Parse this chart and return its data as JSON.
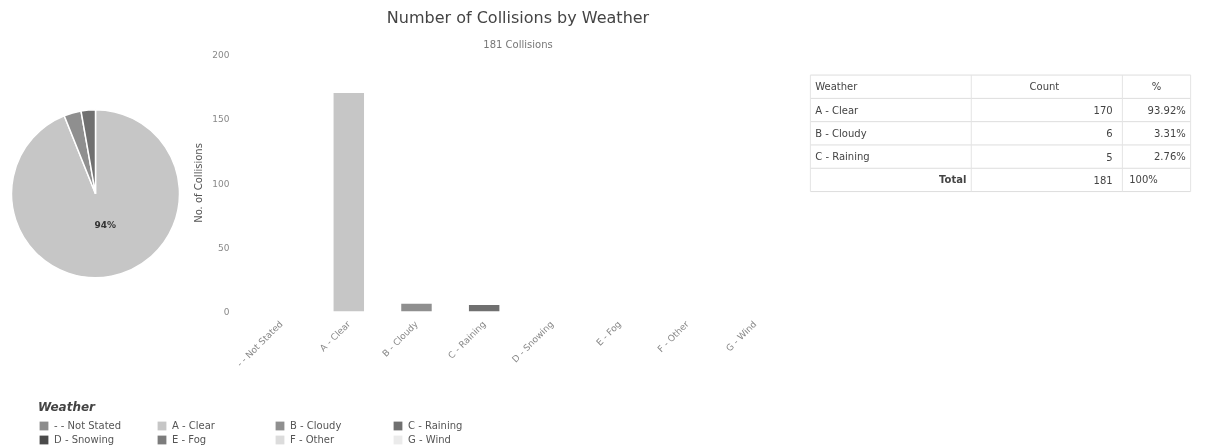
{
  "chart_data": [
    {
      "type": "pie",
      "categories": [
        "- - Not Stated",
        "A - Clear",
        "B - Cloudy",
        "C - Raining",
        "D - Snowing",
        "E - Fog",
        "F - Other",
        "G - Wind"
      ],
      "values": [
        0,
        93.92,
        3.31,
        2.76,
        0,
        0,
        0,
        0
      ],
      "colors": [
        "#8c8c8c",
        "#c6c6c6",
        "#8f8f8f",
        "#707070",
        "#4a4a4a",
        "#7c7c7c",
        "#dcdcdc",
        "#ebebeb"
      ],
      "value_labels": [
        null,
        "94%",
        null,
        null,
        null,
        null,
        null,
        null
      ],
      "legend": "bottom",
      "legend_title": "Weather"
    },
    {
      "type": "bar",
      "title": "Number of Collisions by Weather",
      "subtitle": "181 Collisions",
      "ylabel": "No. of Collisions",
      "categories": [
        "- - Not Stated",
        "A - Clear",
        "B - Cloudy",
        "C - Raining",
        "D - Snowing",
        "E - Fog",
        "F - Other",
        "G - Wind"
      ],
      "values": [
        0,
        170,
        6,
        5,
        0,
        0,
        0,
        0
      ],
      "colors": [
        "#8c8c8c",
        "#c6c6c6",
        "#8f8f8f",
        "#707070",
        "#4a4a4a",
        "#7c7c7c",
        "#dcdcdc",
        "#ebebeb"
      ],
      "ylim": [
        0,
        200
      ],
      "yticks": [
        0,
        50,
        100,
        150,
        200
      ]
    },
    {
      "type": "other",
      "categories": [
        "A - Clear",
        "B - Cloudy",
        "C - Raining"
      ],
      "values": [
        93.92,
        3.31,
        2.76
      ],
      "value_labels": [
        "93.92%",
        "3.31%",
        "2.76%"
      ],
      "annotations": [
        "Weather",
        "Count",
        "%",
        "170",
        "6",
        "5",
        "Total",
        "181",
        "100%"
      ]
    }
  ]
}
